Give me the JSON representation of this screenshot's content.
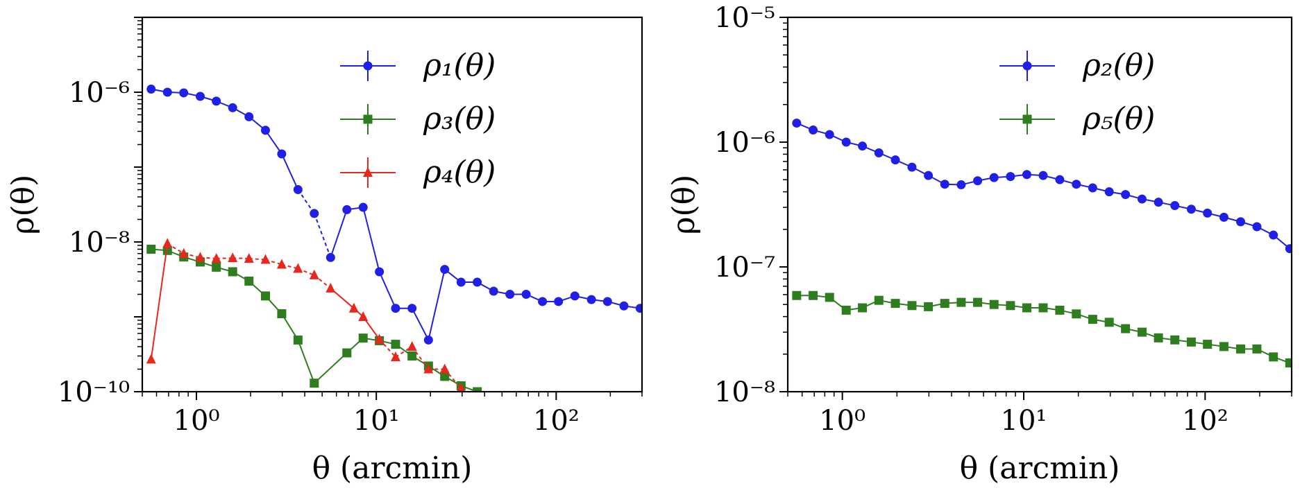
{
  "chart_data": [
    {
      "type": "line",
      "xscale": "log",
      "yscale": "log",
      "xlim": [
        0.5,
        300
      ],
      "ylim": [
        1e-10,
        1e-05
      ],
      "xlabel": "θ (arcmin)",
      "ylabel": "ρ(θ)",
      "xtick_labels": [
        "10⁰",
        "10¹",
        "10²"
      ],
      "ytick_labels": [
        "10⁻¹⁰",
        "10⁻⁸",
        "10⁻⁶"
      ],
      "legend_placement": "top-right",
      "series": [
        {
          "name": "ρ₁(θ)",
          "color": "#1f1fe6",
          "marker": "circle",
          "x": [
            0.56,
            0.69,
            0.85,
            1.05,
            1.29,
            1.59,
            1.96,
            2.42,
            2.98,
            3.67,
            4.52,
            5.57,
            6.86,
            8.45,
            10.4,
            12.8,
            15.8,
            19.5,
            24.0,
            29.6,
            36.4,
            44.9,
            55.3,
            68.1,
            83.9,
            103,
            127,
            157,
            193,
            238,
            293
          ],
          "y": [
            1.1e-06,
            1e-06,
            9.8e-07,
            8.8e-07,
            7.6e-07,
            6.2e-07,
            4.7e-07,
            3.1e-07,
            1.5e-07,
            5e-08,
            2.4e-08,
            6.2e-09,
            2.7e-08,
            2.9e-08,
            4e-09,
            1.3e-09,
            1.3e-09,
            4.9e-10,
            4.3e-09,
            2.9e-09,
            2.9e-09,
            2.2e-09,
            2e-09,
            2e-09,
            1.6e-09,
            1.6e-09,
            1.9e-09,
            1.7e-09,
            1.6e-09,
            1.4e-09,
            1.3e-09
          ],
          "sign": [
            1,
            1,
            1,
            1,
            1,
            1,
            1,
            1,
            1,
            -1,
            -1,
            -1,
            1,
            1,
            1,
            1,
            1,
            1,
            1,
            1,
            1,
            1,
            1,
            1,
            1,
            1,
            1,
            1,
            1,
            1,
            1
          ]
        },
        {
          "name": "ρ₃(θ)",
          "color": "#2e7d1e",
          "marker": "square",
          "x": [
            0.56,
            0.69,
            0.85,
            1.05,
            1.29,
            1.59,
            1.96,
            2.42,
            2.98,
            3.67,
            4.52,
            6.86,
            8.45,
            10.4,
            12.8,
            15.8,
            19.5,
            24.0,
            29.6,
            36.4
          ],
          "y": [
            8e-09,
            7.7e-09,
            6.3e-09,
            5.4e-09,
            4.6e-09,
            4e-09,
            3e-09,
            1.9e-09,
            1.1e-09,
            4.9e-10,
            1.3e-10,
            3.3e-10,
            5.2e-10,
            4.8e-10,
            4.3e-10,
            3e-10,
            2.2e-10,
            1.6e-10,
            1.2e-10,
            1e-10
          ],
          "sign": [
            1,
            1,
            1,
            1,
            1,
            1,
            1,
            1,
            1,
            1,
            1,
            1,
            1,
            1,
            1,
            1,
            1,
            1,
            1,
            1
          ]
        },
        {
          "name": "ρ₄(θ)",
          "color": "#e8281e",
          "marker": "triangle",
          "x": [
            0.56,
            0.69,
            0.85,
            1.05,
            1.29,
            1.59,
            1.96,
            2.42,
            2.98,
            3.67,
            4.52,
            5.57,
            7.5,
            8.45,
            10.4,
            12.8,
            15.8,
            19.5,
            24.0,
            29.6
          ],
          "y": [
            2.7e-10,
            9.5e-09,
            7e-09,
            6.2e-09,
            6e-09,
            6.1e-09,
            6e-09,
            5.8e-09,
            5e-09,
            4.4e-09,
            3.6e-09,
            2.4e-09,
            1.3e-09,
            1e-09,
            5e-10,
            2.9e-10,
            4e-10,
            2e-10,
            2e-10,
            1.1e-10
          ],
          "sign": [
            1,
            -1,
            -1,
            -1,
            -1,
            -1,
            -1,
            -1,
            -1,
            -1,
            -1,
            -1,
            1,
            1,
            -1,
            -1,
            -1,
            -1,
            -1,
            -1
          ]
        }
      ]
    },
    {
      "type": "line",
      "xscale": "log",
      "yscale": "log",
      "xlim": [
        0.5,
        300
      ],
      "ylim": [
        1e-08,
        1e-05
      ],
      "xlabel": "θ (arcmin)",
      "ylabel": "ρ(θ)",
      "xtick_labels": [
        "10⁰",
        "10¹",
        "10²"
      ],
      "ytick_labels": [
        "10⁻⁸",
        "10⁻⁷",
        "10⁻⁶",
        "10⁻⁵"
      ],
      "legend_placement": "top-right",
      "series": [
        {
          "name": "ρ₂(θ)",
          "color": "#1f1fe6",
          "marker": "circle",
          "x": [
            0.56,
            0.69,
            0.85,
            1.05,
            1.29,
            1.59,
            1.96,
            2.42,
            2.98,
            3.67,
            4.52,
            5.57,
            6.86,
            8.45,
            10.4,
            12.8,
            15.8,
            19.5,
            24.0,
            29.6,
            36.4,
            44.9,
            55.3,
            68.1,
            83.9,
            103,
            127,
            157,
            193,
            238,
            293
          ],
          "y": [
            1.42e-06,
            1.25e-06,
            1.15e-06,
            1e-06,
            9.3e-07,
            8.2e-07,
            7.2e-07,
            6.3e-07,
            5.4e-07,
            4.6e-07,
            4.55e-07,
            4.9e-07,
            5.2e-07,
            5.3e-07,
            5.5e-07,
            5.4e-07,
            5e-07,
            4.6e-07,
            4.3e-07,
            4e-07,
            3.8e-07,
            3.5e-07,
            3.3e-07,
            3.1e-07,
            2.9e-07,
            2.7e-07,
            2.5e-07,
            2.3e-07,
            2.1e-07,
            1.8e-07,
            1.4e-07
          ],
          "sign": [
            1,
            1,
            1,
            1,
            1,
            1,
            1,
            1,
            1,
            1,
            1,
            1,
            1,
            1,
            1,
            1,
            1,
            1,
            1,
            1,
            1,
            1,
            1,
            1,
            1,
            1,
            1,
            1,
            1,
            1,
            1
          ]
        },
        {
          "name": "ρ₅(θ)",
          "color": "#2e7d1e",
          "marker": "square",
          "x": [
            0.56,
            0.69,
            0.85,
            1.05,
            1.29,
            1.59,
            1.96,
            2.42,
            2.98,
            3.67,
            4.52,
            5.57,
            6.86,
            8.45,
            10.4,
            12.8,
            15.8,
            19.5,
            24.0,
            29.6,
            36.4,
            44.9,
            55.3,
            68.1,
            83.9,
            103,
            127,
            157,
            193,
            238,
            293
          ],
          "y": [
            5.9e-08,
            5.9e-08,
            5.7e-08,
            4.5e-08,
            4.7e-08,
            5.4e-08,
            5.1e-08,
            4.9e-08,
            4.8e-08,
            5.1e-08,
            5.2e-08,
            5.2e-08,
            5e-08,
            4.9e-08,
            4.7e-08,
            4.7e-08,
            4.5e-08,
            4.2e-08,
            3.8e-08,
            3.6e-08,
            3.2e-08,
            3e-08,
            2.7e-08,
            2.6e-08,
            2.5e-08,
            2.4e-08,
            2.3e-08,
            2.2e-08,
            2.2e-08,
            1.9e-08,
            1.7e-08
          ],
          "sign": [
            1,
            1,
            1,
            1,
            1,
            1,
            1,
            1,
            1,
            1,
            1,
            1,
            1,
            1,
            1,
            1,
            1,
            1,
            1,
            1,
            1,
            1,
            1,
            1,
            1,
            1,
            1,
            1,
            1,
            1,
            1
          ]
        }
      ]
    }
  ]
}
